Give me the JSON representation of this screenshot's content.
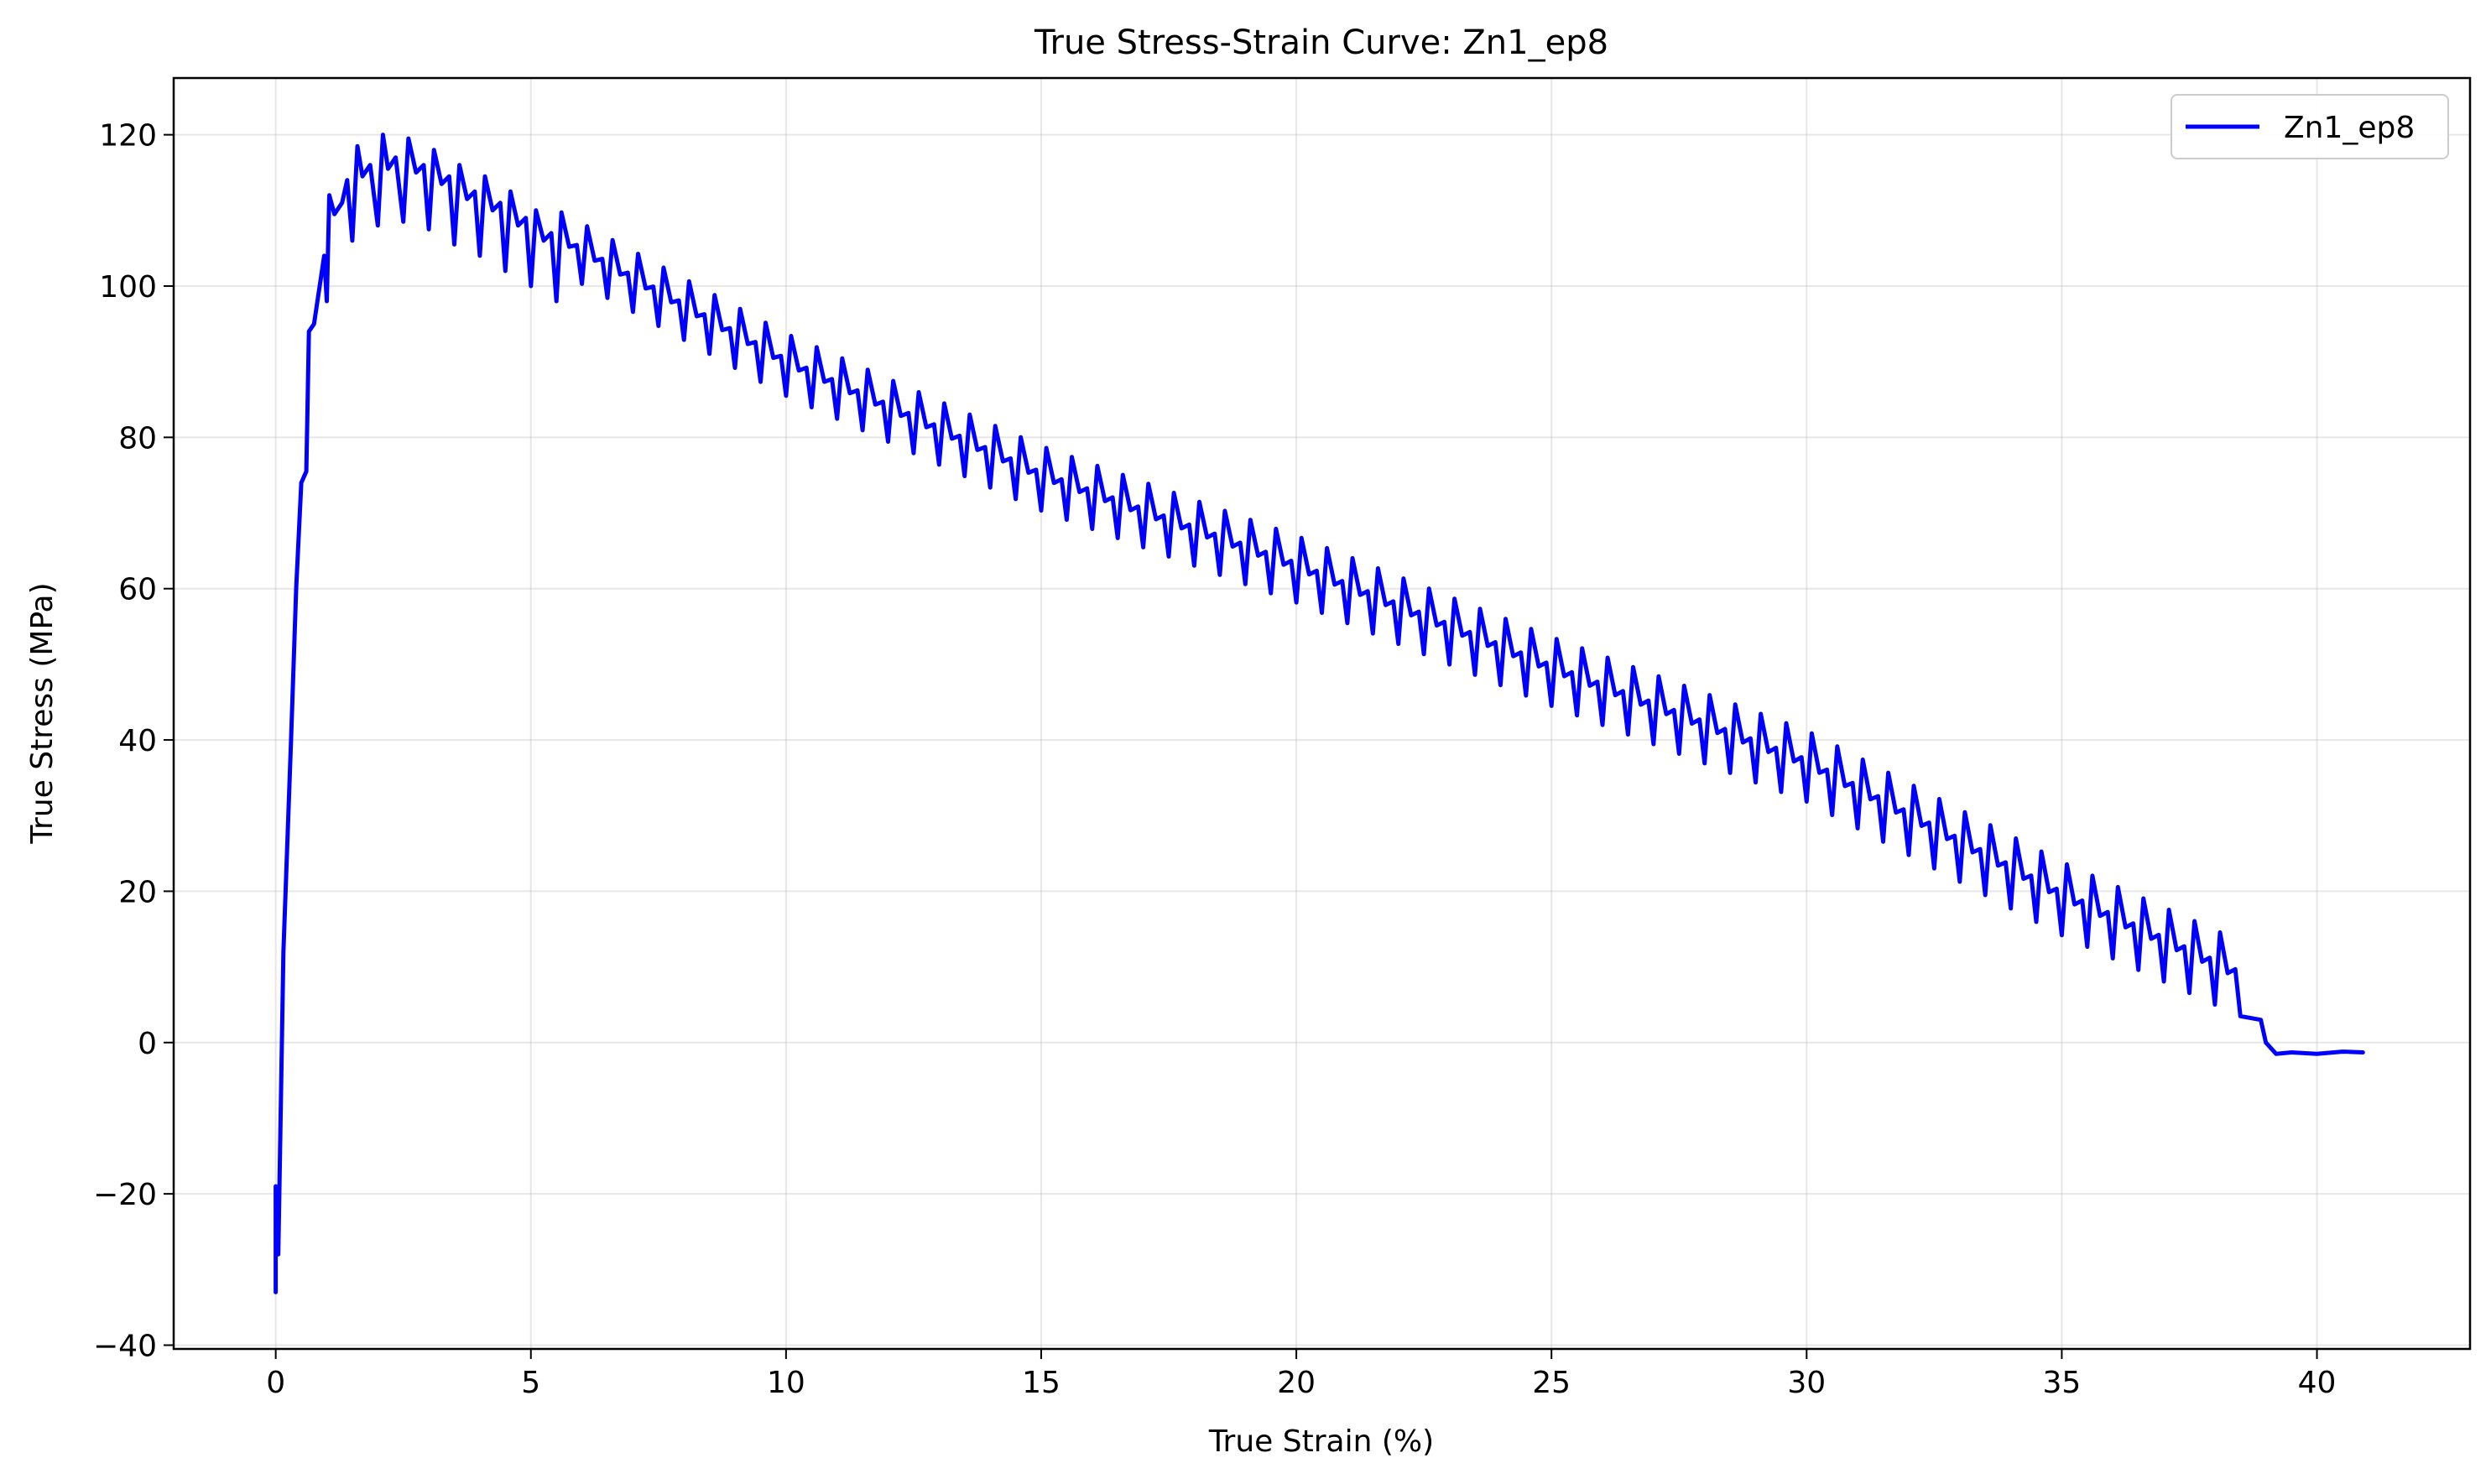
{
  "chart_data": {
    "type": "line",
    "title": "True Stress-Strain Curve: Zn1_ep8",
    "xlabel": "True Strain (%)",
    "ylabel": "True Stress (MPa)",
    "xlim": [
      -2.0,
      43.0
    ],
    "ylim": [
      -40.5,
      127.5
    ],
    "xticks": [
      0,
      5,
      10,
      15,
      20,
      25,
      30,
      35,
      40
    ],
    "yticks": [
      -40,
      -20,
      0,
      20,
      40,
      60,
      80,
      100,
      120
    ],
    "grid": true,
    "legend": {
      "position": "top-right",
      "entries": [
        "Zn1_ep8"
      ]
    },
    "series": [
      {
        "name": "Zn1_ep8",
        "color": "#0000ff",
        "points": [
          [
            0,
            -33
          ],
          [
            0,
            -19
          ],
          [
            0.05,
            -28
          ],
          [
            0.15,
            12
          ],
          [
            0.3,
            40
          ],
          [
            0.4,
            60
          ],
          [
            0.5,
            74
          ],
          [
            0.6,
            75.5
          ],
          [
            0.65,
            94
          ],
          [
            0.75,
            95
          ],
          [
            0.95,
            104
          ],
          [
            1.0,
            98
          ],
          [
            1.05,
            112
          ],
          [
            1.15,
            109.5
          ],
          [
            1.3,
            111
          ],
          [
            1.4,
            114
          ],
          [
            1.5,
            106
          ],
          [
            1.6,
            118.5
          ],
          [
            1.7,
            114.5
          ],
          [
            1.85,
            116
          ],
          [
            2.0,
            108
          ],
          [
            2.1,
            120
          ],
          [
            2.2,
            115.5
          ],
          [
            2.35,
            117
          ],
          [
            2.5,
            108.5
          ],
          [
            2.6,
            119.5
          ],
          [
            2.75,
            115
          ],
          [
            2.9,
            116
          ],
          [
            3.0,
            107.5
          ],
          [
            3.1,
            118
          ],
          [
            3.25,
            113.5
          ],
          [
            3.4,
            114.5
          ],
          [
            3.5,
            105.5
          ],
          [
            3.6,
            116
          ],
          [
            3.75,
            111.5
          ],
          [
            3.9,
            112.5
          ],
          [
            4.0,
            104
          ],
          [
            4.1,
            114.5
          ],
          [
            4.25,
            110
          ],
          [
            4.4,
            111
          ],
          [
            4.5,
            102
          ],
          [
            4.6,
            112.5
          ],
          [
            4.75,
            108
          ],
          [
            4.9,
            109
          ],
          [
            5.0,
            100
          ],
          [
            5.1,
            110
          ],
          [
            5.25,
            106
          ],
          [
            5.4,
            107
          ],
          [
            5.5,
            98
          ]
        ],
        "trend": [
          [
            5.5,
            106.5
          ],
          [
            10,
            90
          ],
          [
            15,
            75
          ],
          [
            20,
            63
          ],
          [
            25,
            49.5
          ],
          [
            30,
            37
          ],
          [
            35,
            19.5
          ],
          [
            38.8,
            8
          ]
        ],
        "oscillation_amplitude": 9,
        "tail": [
          [
            38.9,
            3
          ],
          [
            39.0,
            0
          ],
          [
            39.2,
            -1.5
          ],
          [
            39.5,
            -1.3
          ],
          [
            40.0,
            -1.5
          ],
          [
            40.5,
            -1.2
          ],
          [
            40.9,
            -1.3
          ]
        ]
      }
    ]
  }
}
